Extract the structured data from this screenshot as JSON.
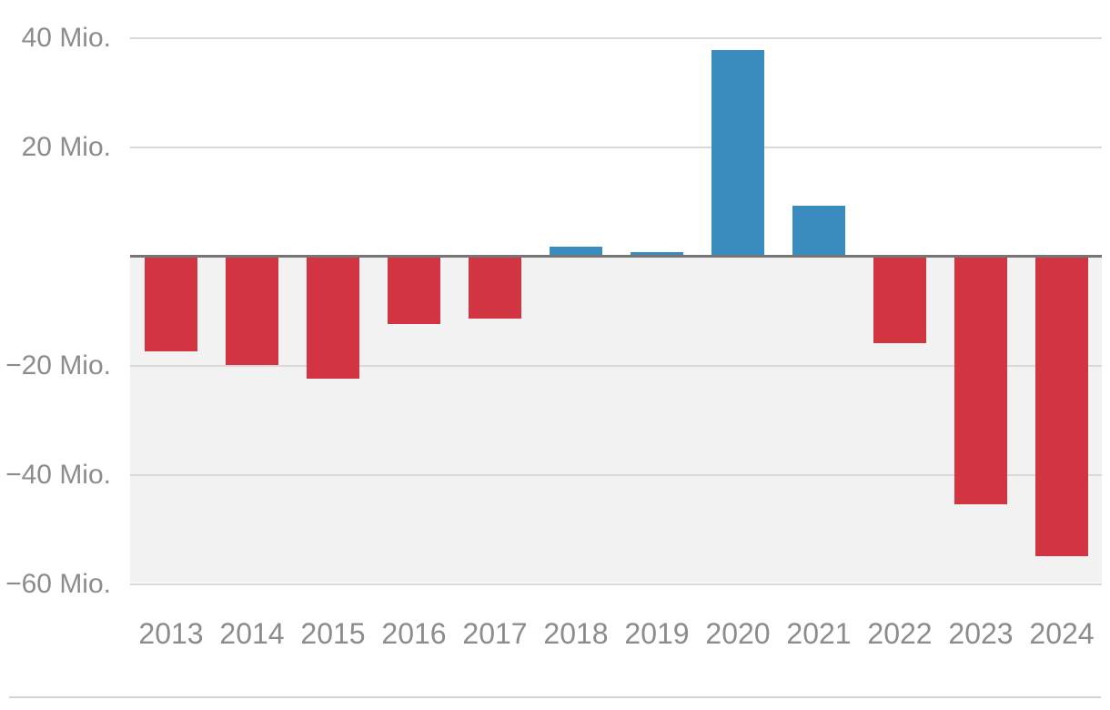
{
  "chart_data": {
    "type": "bar",
    "title": "",
    "xlabel": "",
    "ylabel": "Mio.",
    "categories": [
      "2013",
      "2014",
      "2015",
      "2016",
      "2017",
      "2018",
      "2019",
      "2020",
      "2021",
      "2022",
      "2023",
      "2024"
    ],
    "values": [
      -17.5,
      -20,
      -22.5,
      -12.5,
      -11.5,
      1.5,
      0.5,
      37.5,
      9,
      -16,
      -45.5,
      -55
    ],
    "unit": "Mio.",
    "yticks": [
      {
        "value": 40,
        "label": "40 Mio."
      },
      {
        "value": 20,
        "label": "20 Mio."
      },
      {
        "value": -20,
        "label": "−20 Mio."
      },
      {
        "value": -40,
        "label": "−40 Mio."
      },
      {
        "value": -60,
        "label": "−60 Mio."
      }
    ],
    "ylim": [
      -60,
      45
    ],
    "grid": true,
    "legend": "none",
    "colors": {
      "positive_bar": "#3a8cbe",
      "negative_bar": "#d33441",
      "zero_line": "#757575",
      "gridline": "#d9d9d9",
      "negative_region_bg": "#f2f2f2",
      "axis_label": "#8c8c8c",
      "divider": "#d4d4d4",
      "background": "#ffffff"
    }
  }
}
